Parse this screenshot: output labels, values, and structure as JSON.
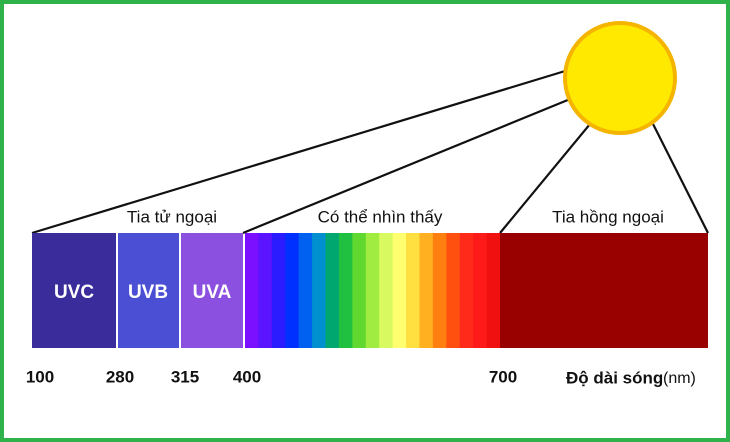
{
  "regions": [
    "Tia tử ngoại",
    "Có thể nhìn thấy",
    "Tia hồng ngoại"
  ],
  "uv_segments": [
    "UVC",
    "UVB",
    "UVA"
  ],
  "wavelengths": [
    100,
    280,
    315,
    400,
    700
  ],
  "axis_label": "Độ dài sóng",
  "unit": "(nm)"
}
